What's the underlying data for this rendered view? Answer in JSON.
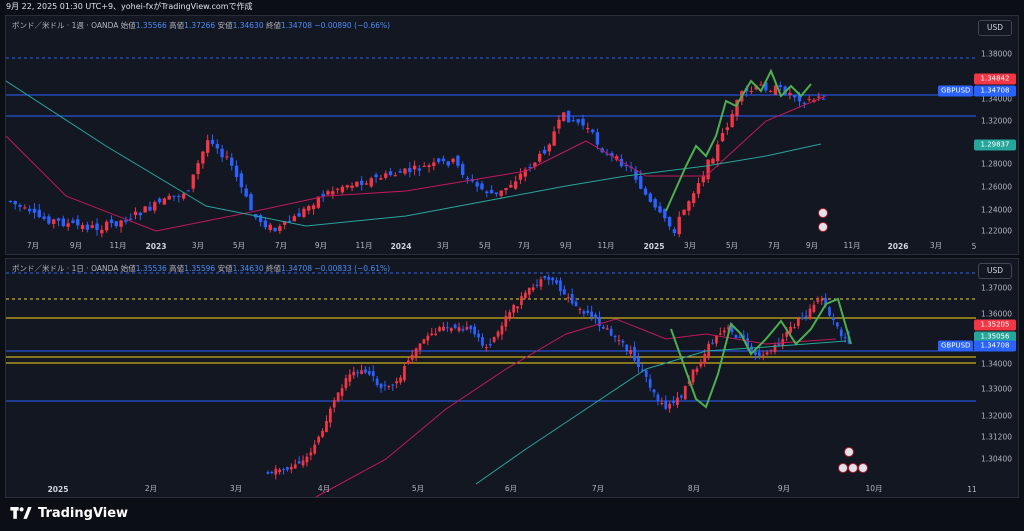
{
  "header": {
    "timestamp": "9月 22, 2025 01:30 UTC+9、yohei-fxがTradingView.comで作成"
  },
  "footer": {
    "brand": "TradingView"
  },
  "colors": {
    "background": "#131722",
    "up": "#f23645",
    "down": "#2962ff",
    "ma_short": "#c2185b",
    "ma_long": "#26a69a",
    "wave": "#4caf50"
  },
  "panels": [
    {
      "legend": {
        "symbol": "ポンド／米ドル · 1週 · OANDA",
        "open_label": "始値",
        "open": "1.35566",
        "high_label": "高値",
        "high": "1.37266",
        "low_label": "安値",
        "low": "1.34630",
        "close_label": "終値",
        "close": "1.34708",
        "change": "−0.00890 (−0.66%)"
      },
      "currency": "USD",
      "y_ticks": [
        "1.38000",
        "1.34000",
        "1.32000",
        "1.28000",
        "1.26000",
        "1.24000",
        "1.22000"
      ],
      "x_ticks": [
        "7月",
        "9月",
        "11月",
        "2023",
        "3月",
        "5月",
        "7月",
        "9月",
        "11月",
        "2024",
        "3月",
        "5月",
        "7月",
        "9月",
        "11月",
        "2025",
        "3月",
        "5月",
        "7月",
        "9月",
        "11月",
        "2026",
        "3月",
        "5"
      ],
      "tags": [
        {
          "text": "1.34842",
          "color": "#f23645"
        },
        {
          "text": "1.34708",
          "color": "#2962ff"
        },
        {
          "text": "1.29837",
          "color": "#26a69a"
        }
      ],
      "pair_label": "GBPUSD"
    },
    {
      "legend": {
        "symbol": "ポンド／米ドル · 1日 · OANDA",
        "open_label": "始値",
        "open": "1.35536",
        "high_label": "高値",
        "high": "1.35596",
        "low_label": "安値",
        "low": "1.34630",
        "close_label": "終値",
        "close": "1.34708",
        "change": "−0.00833 (−0.61%)"
      },
      "currency": "USD",
      "y_ticks": [
        "1.37000",
        "1.36000",
        "1.34000",
        "1.33000",
        "1.32000",
        "1.31200",
        "1.30400"
      ],
      "x_ticks": [
        "2025",
        "2月",
        "3月",
        "4月",
        "5月",
        "6月",
        "7月",
        "8月",
        "9月",
        "10月",
        "11"
      ],
      "tags": [
        {
          "text": "1.35205",
          "color": "#f23645"
        },
        {
          "text": "1.35056",
          "color": "#26a69a"
        },
        {
          "text": "1.34708",
          "color": "#2962ff"
        }
      ],
      "pair_label": "GBPUSD"
    }
  ]
}
